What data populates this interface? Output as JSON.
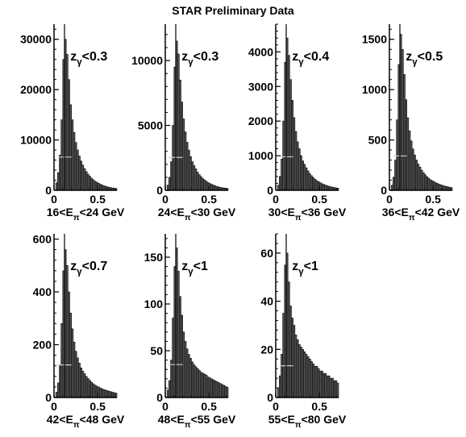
{
  "title": "STAR Preliminary Data",
  "colors": {
    "hist_fill": "#555555",
    "axis": "#000000",
    "overlay": "#cccccc"
  },
  "chart_data": [
    {
      "type": "bar",
      "panel_label": "16<E_π<24 GeV",
      "cut_label": "z_γ<0.3",
      "ylim": [
        0,
        33000
      ],
      "yticks": [
        0,
        10000,
        20000,
        30000
      ],
      "xlim": [
        0,
        0.72
      ],
      "xticks": [
        0,
        0.5
      ],
      "peak_x": 0.12,
      "x": [
        0.0,
        0.02,
        0.04,
        0.06,
        0.08,
        0.1,
        0.12,
        0.14,
        0.16,
        0.18,
        0.2,
        0.22,
        0.24,
        0.26,
        0.28,
        0.3,
        0.32,
        0.34,
        0.36,
        0.38,
        0.4,
        0.42,
        0.44,
        0.46,
        0.48,
        0.5,
        0.52,
        0.54,
        0.56,
        0.58,
        0.6,
        0.62,
        0.64,
        0.66,
        0.68,
        0.7
      ],
      "values": [
        0,
        1500,
        3500,
        7000,
        14000,
        26000,
        30000,
        27000,
        22000,
        17000,
        14000,
        11500,
        9500,
        8000,
        6800,
        5800,
        5000,
        4300,
        3700,
        3200,
        2800,
        2400,
        2100,
        1800,
        1600,
        1400,
        1200,
        1050,
        900,
        800,
        700,
        600,
        520,
        460,
        400,
        350
      ]
    },
    {
      "type": "bar",
      "panel_label": "24<E_π<30 GeV",
      "cut_label": "z_γ<0.3",
      "ylim": [
        0,
        12800
      ],
      "yticks": [
        0,
        5000,
        10000
      ],
      "xlim": [
        0,
        0.72
      ],
      "xticks": [
        0,
        0.5
      ],
      "peak_x": 0.12,
      "x": [
        0.0,
        0.02,
        0.04,
        0.06,
        0.08,
        0.1,
        0.12,
        0.14,
        0.16,
        0.18,
        0.2,
        0.22,
        0.24,
        0.26,
        0.28,
        0.3,
        0.32,
        0.34,
        0.36,
        0.38,
        0.4,
        0.42,
        0.44,
        0.46,
        0.48,
        0.5,
        0.52,
        0.54,
        0.56,
        0.58,
        0.6,
        0.62,
        0.64,
        0.66,
        0.68,
        0.7
      ],
      "values": [
        0,
        400,
        1000,
        2200,
        5000,
        9500,
        11500,
        10500,
        8500,
        6800,
        5500,
        4500,
        3700,
        3100,
        2600,
        2200,
        1900,
        1650,
        1400,
        1200,
        1050,
        900,
        800,
        700,
        600,
        520,
        460,
        400,
        350,
        300,
        260,
        230,
        200,
        180,
        160,
        140
      ]
    },
    {
      "type": "bar",
      "panel_label": "30<E_π<36 GeV",
      "cut_label": "z_γ<0.4",
      "ylim": [
        0,
        4800
      ],
      "yticks": [
        0,
        1000,
        2000,
        3000,
        4000
      ],
      "xlim": [
        0,
        0.72
      ],
      "xticks": [
        0,
        0.5
      ],
      "peak_x": 0.12,
      "x": [
        0.0,
        0.02,
        0.04,
        0.06,
        0.08,
        0.1,
        0.12,
        0.14,
        0.16,
        0.18,
        0.2,
        0.22,
        0.24,
        0.26,
        0.28,
        0.3,
        0.32,
        0.34,
        0.36,
        0.38,
        0.4,
        0.42,
        0.44,
        0.46,
        0.48,
        0.5,
        0.52,
        0.54,
        0.56,
        0.58,
        0.6,
        0.62,
        0.64,
        0.66,
        0.68,
        0.7
      ],
      "values": [
        0,
        150,
        400,
        900,
        2000,
        3700,
        4400,
        3900,
        3200,
        2600,
        2100,
        1700,
        1400,
        1200,
        1000,
        850,
        750,
        650,
        560,
        480,
        420,
        370,
        320,
        280,
        250,
        220,
        190,
        170,
        150,
        130,
        115,
        100,
        90,
        80,
        70,
        60
      ]
    },
    {
      "type": "bar",
      "panel_label": "36<E_π<42 GeV",
      "cut_label": "z_γ<0.5",
      "ylim": [
        0,
        1650
      ],
      "yticks": [
        0,
        500,
        1000,
        1500
      ],
      "xlim": [
        0,
        0.72
      ],
      "xticks": [
        0,
        0.5
      ],
      "peak_x": 0.12,
      "x": [
        0.0,
        0.02,
        0.04,
        0.06,
        0.08,
        0.1,
        0.12,
        0.14,
        0.16,
        0.18,
        0.2,
        0.22,
        0.24,
        0.26,
        0.28,
        0.3,
        0.32,
        0.34,
        0.36,
        0.38,
        0.4,
        0.42,
        0.44,
        0.46,
        0.48,
        0.5,
        0.52,
        0.54,
        0.56,
        0.58,
        0.6,
        0.62,
        0.64,
        0.66,
        0.68,
        0.7
      ],
      "values": [
        0,
        50,
        130,
        300,
        700,
        1250,
        1550,
        1400,
        1150,
        900,
        720,
        590,
        490,
        410,
        350,
        300,
        260,
        230,
        200,
        175,
        155,
        135,
        120,
        105,
        95,
        85,
        75,
        68,
        60,
        54,
        48,
        42,
        38,
        34,
        30,
        27
      ]
    },
    {
      "type": "bar",
      "panel_label": "42<E_π<48 GeV",
      "cut_label": "z_γ<0.7",
      "ylim": [
        0,
        620
      ],
      "yticks": [
        0,
        200,
        400,
        600
      ],
      "xlim": [
        0,
        0.72
      ],
      "xticks": [
        0,
        0.5
      ],
      "peak_x": 0.12,
      "x": [
        0.0,
        0.02,
        0.04,
        0.06,
        0.08,
        0.1,
        0.12,
        0.14,
        0.16,
        0.18,
        0.2,
        0.22,
        0.24,
        0.26,
        0.28,
        0.3,
        0.32,
        0.34,
        0.36,
        0.38,
        0.4,
        0.42,
        0.44,
        0.46,
        0.48,
        0.5,
        0.52,
        0.54,
        0.56,
        0.58,
        0.6,
        0.62,
        0.64,
        0.66,
        0.68,
        0.7
      ],
      "values": [
        0,
        20,
        55,
        120,
        280,
        480,
        560,
        500,
        400,
        320,
        260,
        210,
        175,
        150,
        130,
        112,
        100,
        90,
        80,
        72,
        65,
        58,
        52,
        47,
        43,
        40,
        36,
        33,
        30,
        28,
        26,
        24,
        22,
        20,
        18,
        17
      ]
    },
    {
      "type": "bar",
      "panel_label": "48<E_π<55 GeV",
      "cut_label": "z_γ<1",
      "ylim": [
        0,
        175
      ],
      "yticks": [
        0,
        50,
        100,
        150
      ],
      "xlim": [
        0,
        0.72
      ],
      "xticks": [
        0,
        0.5
      ],
      "peak_x": 0.12,
      "x": [
        0.0,
        0.02,
        0.04,
        0.06,
        0.08,
        0.1,
        0.12,
        0.14,
        0.16,
        0.18,
        0.2,
        0.22,
        0.24,
        0.26,
        0.28,
        0.3,
        0.32,
        0.34,
        0.36,
        0.38,
        0.4,
        0.42,
        0.44,
        0.46,
        0.48,
        0.5,
        0.52,
        0.54,
        0.56,
        0.58,
        0.6,
        0.62,
        0.64,
        0.66,
        0.68,
        0.7
      ],
      "values": [
        0,
        8,
        18,
        40,
        85,
        140,
        160,
        135,
        108,
        88,
        70,
        60,
        52,
        46,
        42,
        38,
        35,
        33,
        31,
        29,
        27,
        26,
        25,
        24,
        22,
        21,
        20,
        19,
        18,
        17,
        16,
        15,
        14,
        13,
        12,
        11
      ]
    },
    {
      "type": "bar",
      "panel_label": "55<E_π<80 GeV",
      "cut_label": "z_γ<1",
      "ylim": [
        0,
        68
      ],
      "yticks": [
        0,
        20,
        40,
        60
      ],
      "xlim": [
        0,
        0.72
      ],
      "xticks": [
        0,
        0.5
      ],
      "peak_x": 0.12,
      "x": [
        0.0,
        0.02,
        0.04,
        0.06,
        0.08,
        0.1,
        0.12,
        0.14,
        0.16,
        0.18,
        0.2,
        0.22,
        0.24,
        0.26,
        0.28,
        0.3,
        0.32,
        0.34,
        0.36,
        0.38,
        0.4,
        0.42,
        0.44,
        0.46,
        0.48,
        0.5,
        0.52,
        0.54,
        0.56,
        0.58,
        0.6,
        0.62,
        0.64,
        0.66,
        0.68,
        0.7
      ],
      "values": [
        0,
        4,
        9,
        18,
        35,
        55,
        60,
        48,
        38,
        33,
        30,
        26,
        24,
        22,
        21,
        20,
        19,
        18,
        17,
        16,
        15,
        14,
        13,
        13,
        12,
        11,
        11,
        10,
        10,
        9,
        9,
        8,
        8,
        7,
        7,
        6
      ]
    }
  ]
}
